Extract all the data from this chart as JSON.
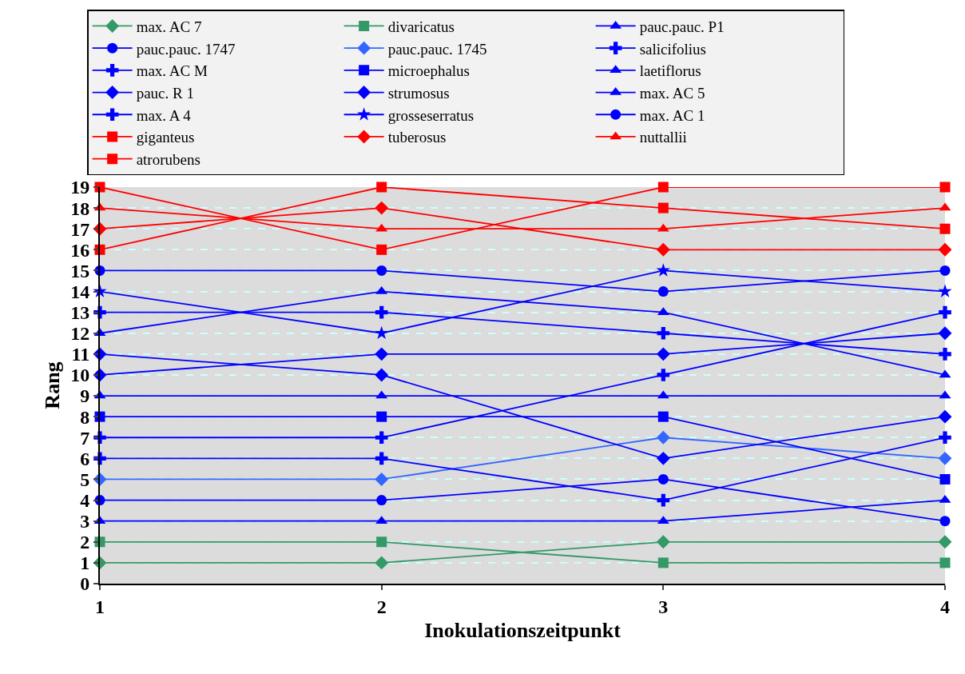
{
  "chart_data": {
    "type": "line",
    "xlabel": "Inokulationszeitpunkt",
    "ylabel": "Rang",
    "x": [
      1,
      2,
      3,
      4
    ],
    "xlim": [
      1,
      4
    ],
    "xticks": [
      1,
      2,
      3,
      4
    ],
    "ylim": [
      0,
      19
    ],
    "yticks": [
      0,
      1,
      2,
      3,
      4,
      5,
      6,
      7,
      8,
      9,
      10,
      11,
      12,
      13,
      14,
      15,
      16,
      17,
      18,
      19
    ],
    "grid": "y",
    "legend": "top",
    "series": [
      {
        "name": "max. AC 7",
        "color": "#339966",
        "marker": "diamond",
        "values": [
          1,
          1,
          2,
          2
        ]
      },
      {
        "name": "divaricatus",
        "color": "#339966",
        "marker": "square",
        "values": [
          2,
          2,
          1,
          1
        ]
      },
      {
        "name": "pauc.pauc. P1",
        "color": "#0000ff",
        "marker": "triangle",
        "values": [
          3,
          3,
          3,
          4
        ]
      },
      {
        "name": "pauc.pauc. 1747",
        "color": "#0000ff",
        "marker": "circle",
        "values": [
          4,
          4,
          5,
          3
        ]
      },
      {
        "name": "pauc.pauc. 1745",
        "color": "#3366ff",
        "marker": "diamond",
        "values": [
          5,
          5,
          7,
          6
        ]
      },
      {
        "name": "salicifolius",
        "color": "#0000ff",
        "marker": "cross",
        "values": [
          6,
          6,
          4,
          7
        ]
      },
      {
        "name": "max. AC M",
        "color": "#0000ff",
        "marker": "cross",
        "values": [
          7,
          7,
          10,
          13
        ]
      },
      {
        "name": "microephalus",
        "color": "#0000ff",
        "marker": "square",
        "values": [
          8,
          8,
          8,
          5
        ]
      },
      {
        "name": "laetiflorus",
        "color": "#0000ff",
        "marker": "triangle",
        "values": [
          9,
          9,
          9,
          9
        ]
      },
      {
        "name": "pauc. R 1",
        "color": "#0000ff",
        "marker": "diamond",
        "values": [
          10,
          11,
          11,
          12
        ]
      },
      {
        "name": "strumosus",
        "color": "#0000ff",
        "marker": "diamond",
        "values": [
          11,
          10,
          6,
          8
        ]
      },
      {
        "name": "max. AC 5",
        "color": "#0000ff",
        "marker": "triangle",
        "values": [
          12,
          14,
          13,
          10
        ]
      },
      {
        "name": "max. A 4",
        "color": "#0000ff",
        "marker": "cross",
        "values": [
          13,
          13,
          12,
          11
        ]
      },
      {
        "name": "grosseserratus",
        "color": "#0000ff",
        "marker": "star",
        "values": [
          14,
          12,
          15,
          14
        ]
      },
      {
        "name": "max. AC 1",
        "color": "#0000ff",
        "marker": "circle",
        "values": [
          15,
          15,
          14,
          15
        ]
      },
      {
        "name": "giganteus",
        "color": "#ff0000",
        "marker": "square",
        "values": [
          16,
          19,
          18,
          17
        ]
      },
      {
        "name": "tuberosus",
        "color": "#ff0000",
        "marker": "diamond",
        "values": [
          17,
          18,
          16,
          16
        ]
      },
      {
        "name": "nuttallii",
        "color": "#ff0000",
        "marker": "triangle",
        "values": [
          18,
          17,
          17,
          18
        ]
      },
      {
        "name": "atrorubens",
        "color": "#ff0000",
        "marker": "square",
        "values": [
          19,
          16,
          19,
          19
        ]
      }
    ]
  }
}
